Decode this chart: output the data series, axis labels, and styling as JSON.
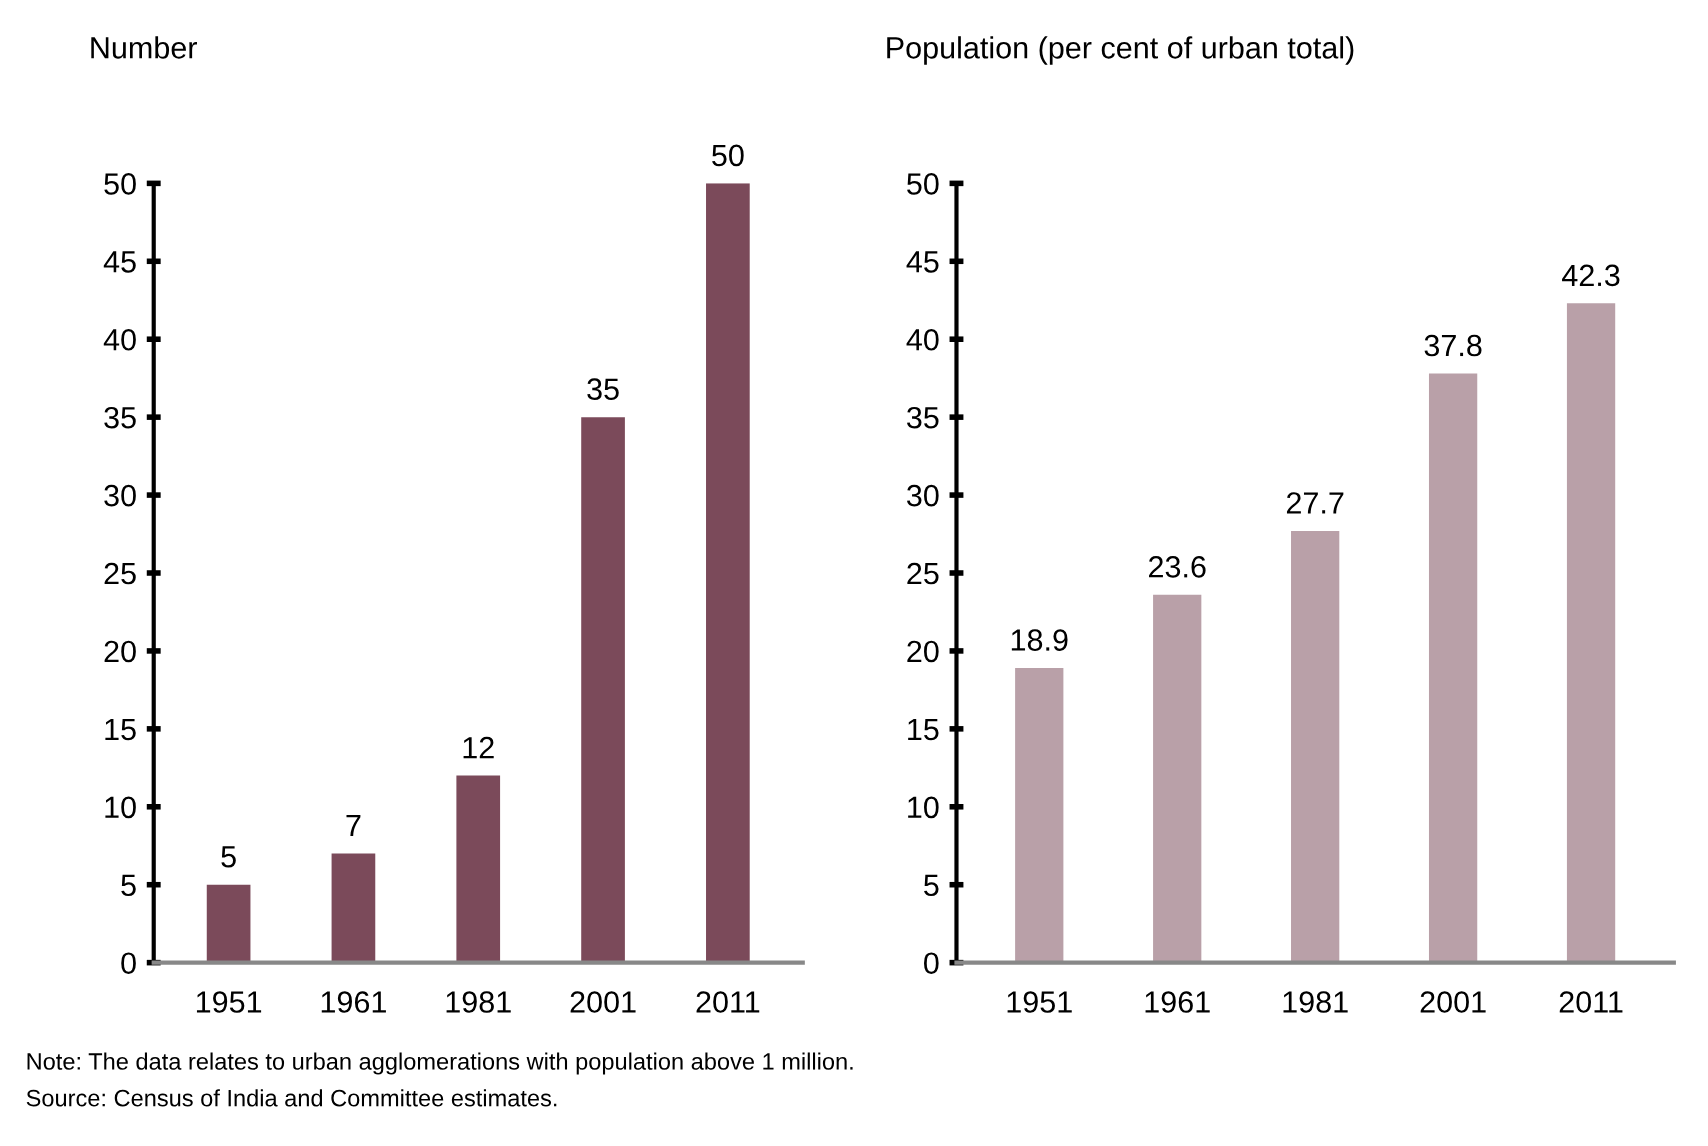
{
  "chart_data": [
    {
      "type": "bar",
      "title": "Number",
      "categories": [
        "1951",
        "1961",
        "1981",
        "2001",
        "2011"
      ],
      "values": [
        5,
        7,
        12,
        35,
        50
      ],
      "color": "#7b4a5a",
      "ylim": [
        0,
        50
      ],
      "yticks": [
        0,
        5,
        10,
        15,
        20,
        25,
        30,
        35,
        40,
        45,
        50
      ],
      "data_labels": true,
      "grid": false,
      "annotations": [
        "Note: The data relates to urban agglomerations with population above 1 million.",
        "Source: Census of India and Committee estimates."
      ]
    },
    {
      "type": "bar",
      "title": "Population (per cent of urban total)",
      "categories": [
        "1951",
        "1961",
        "1981",
        "2001",
        "2011"
      ],
      "values": [
        18.9,
        23.6,
        27.7,
        37.8,
        42.3
      ],
      "color": "#b9a0a8",
      "ylim": [
        0,
        50
      ],
      "yticks": [
        0,
        5,
        10,
        15,
        20,
        25,
        30,
        35,
        40,
        45,
        50
      ],
      "data_labels": true,
      "grid": false
    }
  ]
}
